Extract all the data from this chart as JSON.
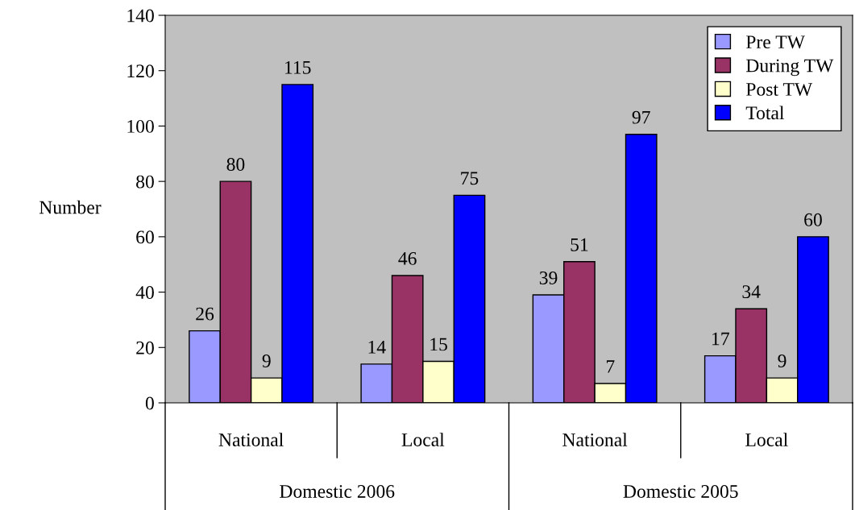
{
  "chart_data": {
    "type": "bar",
    "ylabel": "Number",
    "categories": [
      "National",
      "Local",
      "National",
      "Local"
    ],
    "annotations": [
      "Domestic 2006",
      "Domestic 2005"
    ],
    "series": [
      {
        "name": "Pre TW",
        "color": "#9999ff",
        "values": [
          26,
          14,
          39,
          17
        ]
      },
      {
        "name": "During TW",
        "color": "#993366",
        "values": [
          80,
          46,
          51,
          34
        ]
      },
      {
        "name": "Post TW",
        "color": "#ffffcc",
        "values": [
          9,
          15,
          7,
          9
        ]
      },
      {
        "name": "Total",
        "color": "#0000ff",
        "values": [
          115,
          75,
          97,
          60
        ]
      }
    ],
    "ylim": [
      0,
      140
    ],
    "yticks": [
      0,
      20,
      40,
      60,
      80,
      100,
      120,
      140
    ],
    "grid": false,
    "legend": "top right",
    "data_labels": true
  }
}
